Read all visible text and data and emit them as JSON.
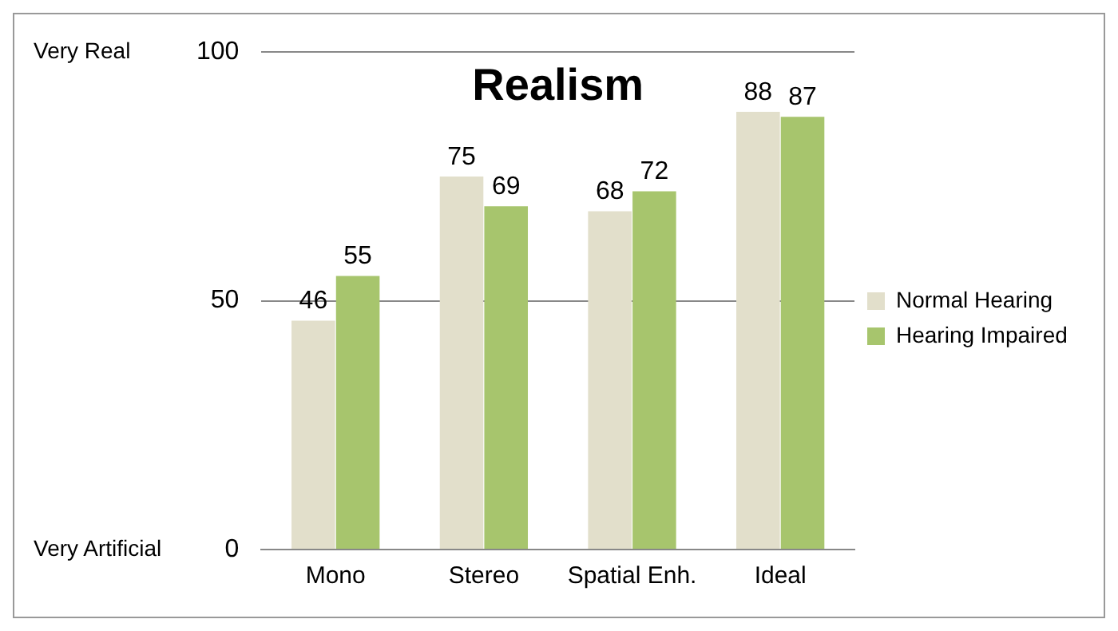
{
  "chart_data": {
    "type": "bar",
    "title": "Realism",
    "categories": [
      "Mono",
      "Stereo",
      "Spatial Enh.",
      "Ideal"
    ],
    "series": [
      {
        "name": "Normal Hearing",
        "color": "#e2dfcb",
        "values": [
          46,
          75,
          68,
          88
        ]
      },
      {
        "name": "Hearing Impaired",
        "color": "#a7c56d",
        "values": [
          55,
          69,
          72,
          87
        ]
      }
    ],
    "ylim": [
      0,
      100
    ],
    "yticks": [
      0,
      50,
      100
    ],
    "grid": "y",
    "legend": "right",
    "data_labels": true,
    "annotations": [
      "Very Real",
      "Very Artificial"
    ]
  }
}
